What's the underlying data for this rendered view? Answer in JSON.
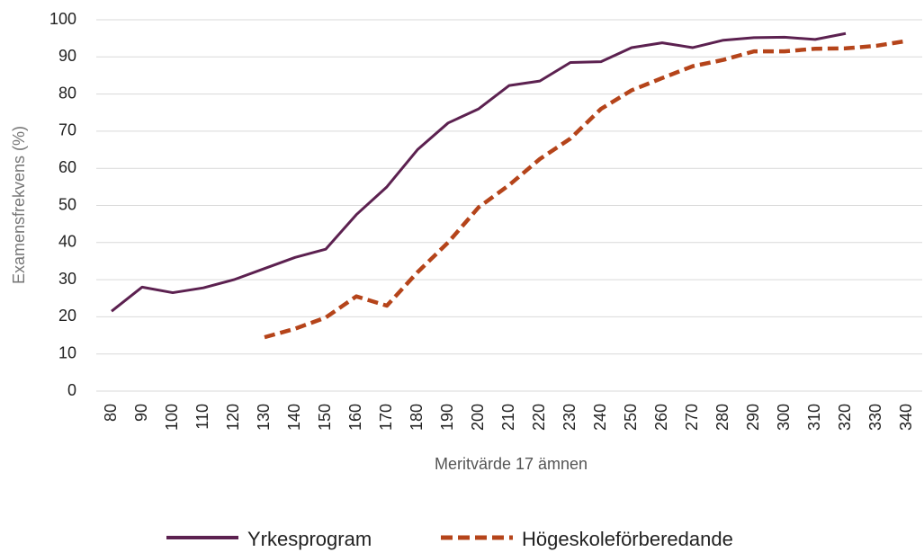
{
  "chart_data": {
    "type": "line",
    "xlabel": "Meritvärde 17 ämnen",
    "ylabel": "Examensfrekvens (%)",
    "categories": [
      "80",
      "90",
      "100",
      "110",
      "120",
      "130",
      "140",
      "150",
      "160",
      "170",
      "180",
      "190",
      "200",
      "210",
      "220",
      "230",
      "240",
      "250",
      "260",
      "270",
      "280",
      "290",
      "300",
      "310",
      "320",
      "330",
      "340"
    ],
    "series": [
      {
        "name": "Yrkesprogram",
        "color": "#5c2150",
        "dash": false,
        "values": [
          21.5,
          28,
          26.5,
          27.8,
          30,
          33,
          36,
          38.2,
          47.5,
          55,
          65,
          72.2,
          76,
          82.3,
          83.5,
          88.5,
          88.7,
          92.5,
          93.8,
          92.5,
          94.5,
          95.2,
          95.3,
          94.7,
          96.3,
          null,
          null
        ]
      },
      {
        "name": "Högeskoleförberedande",
        "color": "#b5441a",
        "dash": true,
        "values": [
          null,
          null,
          null,
          null,
          null,
          14.5,
          16.8,
          19.8,
          25.5,
          23,
          32,
          40,
          49.5,
          55.5,
          62.5,
          68,
          76,
          81,
          84.3,
          87.5,
          89.2,
          91.5,
          91.5,
          92.2,
          92.3,
          93,
          94.3
        ]
      }
    ],
    "ylim": [
      0,
      100
    ],
    "yticks": [
      0,
      10,
      20,
      30,
      40,
      50,
      60,
      70,
      80,
      90,
      100
    ],
    "grid": true,
    "legend": "bottom"
  }
}
